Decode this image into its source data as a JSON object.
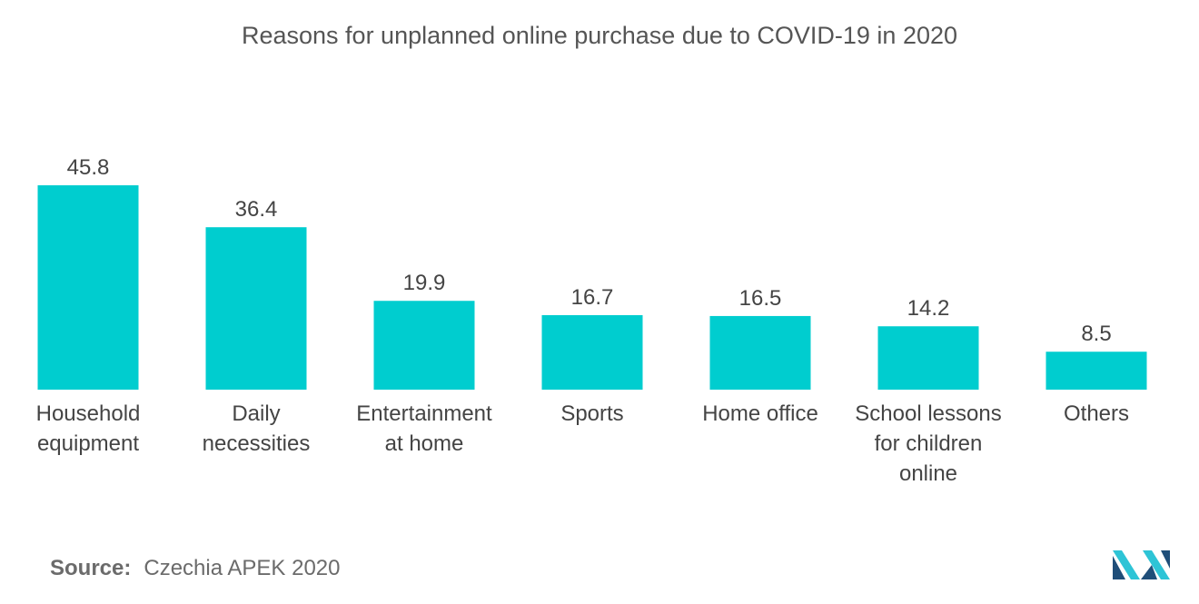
{
  "chart_data": {
    "type": "bar",
    "title": "Reasons for unplanned online purchase due to COVID-19 in 2020",
    "categories": [
      [
        "Household",
        "equipment"
      ],
      [
        "Daily",
        "necessities"
      ],
      [
        "Entertainment",
        "at home"
      ],
      [
        "Sports"
      ],
      [
        "Home office"
      ],
      [
        "School lessons",
        "for children",
        "online"
      ],
      [
        "Others"
      ]
    ],
    "values": [
      45.8,
      36.4,
      19.9,
      16.7,
      16.5,
      14.2,
      8.5
    ],
    "value_labels": [
      "45.8",
      "36.4",
      "19.9",
      "16.7",
      "16.5",
      "14.2",
      "8.5"
    ],
    "ylim": [
      0,
      45.8
    ],
    "grid": false,
    "colors": {
      "bar": "#00CDCF",
      "text": "#444444"
    }
  },
  "footer": {
    "source_label": "Source:",
    "source_text": "Czechia APEK 2020"
  },
  "logo": {
    "icon": "mordor-intelligence-logo",
    "colors": [
      "#1F4E79",
      "#2EC4D6"
    ]
  }
}
